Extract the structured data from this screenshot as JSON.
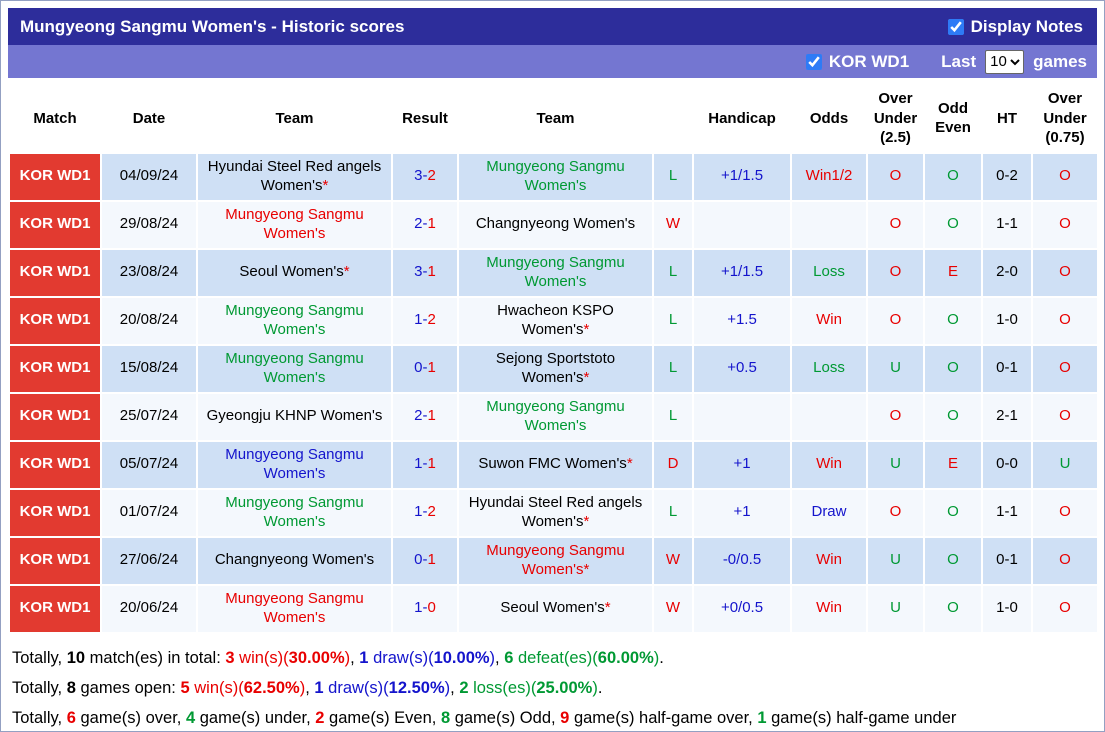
{
  "header": {
    "title": "Mungyeong Sangmu Women's - Historic scores",
    "display_notes_label": "Display Notes",
    "display_notes_checked": true
  },
  "filter_bar": {
    "league_label": "KOR WD1",
    "league_checked": true,
    "last_label": "Last",
    "games_count": "10",
    "games_options": [
      "10"
    ],
    "games_label": "games"
  },
  "colors": {
    "accent_red": "#e23a30",
    "win_red": "#e80000",
    "loss_green": "#009933",
    "draw_blue": "#1414cc",
    "title_bar": "#2d2d9b",
    "filter_bar": "#7476d1"
  },
  "table": {
    "columns": [
      "Match",
      "Date",
      "Team",
      "Result",
      "Team",
      "",
      "Handicap",
      "Odds",
      "Over Under (2.5)",
      "Odd Even",
      "HT",
      "Over Under (0.75)"
    ],
    "rows": [
      {
        "match": "KOR WD1",
        "date": "04/09/24",
        "team1": {
          "name": "Hyundai Steel Red angels Women's",
          "star": "*",
          "color": "black"
        },
        "result": [
          {
            "text": "3-",
            "color": "blue"
          },
          {
            "text": "2",
            "color": "red"
          }
        ],
        "team2": {
          "name": "Mungyeong Sangmu Women's",
          "star": "",
          "color": "green"
        },
        "outcome": {
          "text": "L",
          "color": "green"
        },
        "handicap": "+1/1.5",
        "odds": {
          "text": "Win1/2",
          "color": "red"
        },
        "over_under_25": {
          "text": "O",
          "color": "red"
        },
        "odd_even": {
          "text": "O",
          "color": "green"
        },
        "ht": "0-2",
        "over_under_075": {
          "text": "O",
          "color": "red"
        }
      },
      {
        "match": "KOR WD1",
        "date": "29/08/24",
        "team1": {
          "name": "Mungyeong Sangmu Women's",
          "star": "",
          "color": "red"
        },
        "result": [
          {
            "text": "2-",
            "color": "blue"
          },
          {
            "text": "1",
            "color": "red"
          }
        ],
        "team2": {
          "name": "Changnyeong Women's",
          "star": "",
          "color": "black"
        },
        "outcome": {
          "text": "W",
          "color": "red"
        },
        "handicap": "",
        "odds": {
          "text": "",
          "color": "black"
        },
        "over_under_25": {
          "text": "O",
          "color": "red"
        },
        "odd_even": {
          "text": "O",
          "color": "green"
        },
        "ht": "1-1",
        "over_under_075": {
          "text": "O",
          "color": "red"
        }
      },
      {
        "match": "KOR WD1",
        "date": "23/08/24",
        "team1": {
          "name": "Seoul Women's",
          "star": "*",
          "color": "black"
        },
        "result": [
          {
            "text": "3-",
            "color": "blue"
          },
          {
            "text": "1",
            "color": "red"
          }
        ],
        "team2": {
          "name": "Mungyeong Sangmu Women's",
          "star": "",
          "color": "green"
        },
        "outcome": {
          "text": "L",
          "color": "green"
        },
        "handicap": "+1/1.5",
        "odds": {
          "text": "Loss",
          "color": "green"
        },
        "over_under_25": {
          "text": "O",
          "color": "red"
        },
        "odd_even": {
          "text": "E",
          "color": "red"
        },
        "ht": "2-0",
        "over_under_075": {
          "text": "O",
          "color": "red"
        }
      },
      {
        "match": "KOR WD1",
        "date": "20/08/24",
        "team1": {
          "name": "Mungyeong Sangmu Women's",
          "star": "",
          "color": "green"
        },
        "result": [
          {
            "text": "1-",
            "color": "blue"
          },
          {
            "text": "2",
            "color": "red"
          }
        ],
        "team2": {
          "name": "Hwacheon KSPO Women's",
          "star": "*",
          "color": "black"
        },
        "outcome": {
          "text": "L",
          "color": "green"
        },
        "handicap": "+1.5",
        "odds": {
          "text": "Win",
          "color": "red"
        },
        "over_under_25": {
          "text": "O",
          "color": "red"
        },
        "odd_even": {
          "text": "O",
          "color": "green"
        },
        "ht": "1-0",
        "over_under_075": {
          "text": "O",
          "color": "red"
        }
      },
      {
        "match": "KOR WD1",
        "date": "15/08/24",
        "team1": {
          "name": "Mungyeong Sangmu Women's",
          "star": "",
          "color": "green"
        },
        "result": [
          {
            "text": "0-",
            "color": "blue"
          },
          {
            "text": "1",
            "color": "red"
          }
        ],
        "team2": {
          "name": "Sejong Sportstoto Women's",
          "star": "*",
          "color": "black"
        },
        "outcome": {
          "text": "L",
          "color": "green"
        },
        "handicap": "+0.5",
        "odds": {
          "text": "Loss",
          "color": "green"
        },
        "over_under_25": {
          "text": "U",
          "color": "green"
        },
        "odd_even": {
          "text": "O",
          "color": "green"
        },
        "ht": "0-1",
        "over_under_075": {
          "text": "O",
          "color": "red"
        }
      },
      {
        "match": "KOR WD1",
        "date": "25/07/24",
        "team1": {
          "name": "Gyeongju KHNP Women's",
          "star": "",
          "color": "black"
        },
        "result": [
          {
            "text": "2-",
            "color": "blue"
          },
          {
            "text": "1",
            "color": "red"
          }
        ],
        "team2": {
          "name": "Mungyeong Sangmu Women's",
          "star": "",
          "color": "green"
        },
        "outcome": {
          "text": "L",
          "color": "green"
        },
        "handicap": "",
        "odds": {
          "text": "",
          "color": "black"
        },
        "over_under_25": {
          "text": "O",
          "color": "red"
        },
        "odd_even": {
          "text": "O",
          "color": "green"
        },
        "ht": "2-1",
        "over_under_075": {
          "text": "O",
          "color": "red"
        }
      },
      {
        "match": "KOR WD1",
        "date": "05/07/24",
        "team1": {
          "name": "Mungyeong Sangmu Women's",
          "star": "",
          "color": "blue"
        },
        "result": [
          {
            "text": "1-",
            "color": "blue"
          },
          {
            "text": "1",
            "color": "red"
          }
        ],
        "team2": {
          "name": "Suwon FMC Women's",
          "star": "*",
          "color": "black"
        },
        "outcome": {
          "text": "D",
          "color": "red"
        },
        "handicap": "+1",
        "odds": {
          "text": "Win",
          "color": "red"
        },
        "over_under_25": {
          "text": "U",
          "color": "green"
        },
        "odd_even": {
          "text": "E",
          "color": "red"
        },
        "ht": "0-0",
        "over_under_075": {
          "text": "U",
          "color": "green"
        }
      },
      {
        "match": "KOR WD1",
        "date": "01/07/24",
        "team1": {
          "name": "Mungyeong Sangmu Women's",
          "star": "",
          "color": "green"
        },
        "result": [
          {
            "text": "1-",
            "color": "blue"
          },
          {
            "text": "2",
            "color": "red"
          }
        ],
        "team2": {
          "name": "Hyundai Steel Red angels Women's",
          "star": "*",
          "color": "black"
        },
        "outcome": {
          "text": "L",
          "color": "green"
        },
        "handicap": "+1",
        "odds": {
          "text": "Draw",
          "color": "blue"
        },
        "over_under_25": {
          "text": "O",
          "color": "red"
        },
        "odd_even": {
          "text": "O",
          "color": "green"
        },
        "ht": "1-1",
        "over_under_075": {
          "text": "O",
          "color": "red"
        }
      },
      {
        "match": "KOR WD1",
        "date": "27/06/24",
        "team1": {
          "name": "Changnyeong Women's",
          "star": "",
          "color": "black"
        },
        "result": [
          {
            "text": "0-",
            "color": "blue"
          },
          {
            "text": "1",
            "color": "red"
          }
        ],
        "team2": {
          "name": "Mungyeong Sangmu Women's",
          "star": "*",
          "color": "red"
        },
        "outcome": {
          "text": "W",
          "color": "red"
        },
        "handicap": "-0/0.5",
        "odds": {
          "text": "Win",
          "color": "red"
        },
        "over_under_25": {
          "text": "U",
          "color": "green"
        },
        "odd_even": {
          "text": "O",
          "color": "green"
        },
        "ht": "0-1",
        "over_under_075": {
          "text": "O",
          "color": "red"
        }
      },
      {
        "match": "KOR WD1",
        "date": "20/06/24",
        "team1": {
          "name": "Mungyeong Sangmu Women's",
          "star": "",
          "color": "red"
        },
        "result": [
          {
            "text": "1-",
            "color": "blue"
          },
          {
            "text": "0",
            "color": "red"
          }
        ],
        "team2": {
          "name": "Seoul Women's",
          "star": "*",
          "color": "black"
        },
        "outcome": {
          "text": "W",
          "color": "red"
        },
        "handicap": "+0/0.5",
        "odds": {
          "text": "Win",
          "color": "red"
        },
        "over_under_25": {
          "text": "U",
          "color": "green"
        },
        "odd_even": {
          "text": "O",
          "color": "green"
        },
        "ht": "1-0",
        "over_under_075": {
          "text": "O",
          "color": "red"
        }
      }
    ]
  },
  "footer": {
    "lines": [
      {
        "parts": [
          {
            "text": "Totally, ",
            "color": "black"
          },
          {
            "text": "10",
            "color": "black",
            "bold": true
          },
          {
            "text": " match(es) in total: ",
            "color": "black"
          },
          {
            "text": "3",
            "color": "red",
            "bold": true
          },
          {
            "text": " win(s)(",
            "color": "red"
          },
          {
            "text": "30.00%",
            "color": "red",
            "bold": true
          },
          {
            "text": ")",
            "color": "red"
          },
          {
            "text": ", ",
            "color": "black"
          },
          {
            "text": "1",
            "color": "blue",
            "bold": true
          },
          {
            "text": " draw(s)(",
            "color": "blue"
          },
          {
            "text": "10.00%",
            "color": "blue",
            "bold": true
          },
          {
            "text": ")",
            "color": "blue"
          },
          {
            "text": ", ",
            "color": "black"
          },
          {
            "text": "6",
            "color": "green",
            "bold": true
          },
          {
            "text": " defeat(es)(",
            "color": "green"
          },
          {
            "text": "60.00%",
            "color": "green",
            "bold": true
          },
          {
            "text": ")",
            "color": "green"
          },
          {
            "text": ".",
            "color": "black"
          }
        ]
      },
      {
        "parts": [
          {
            "text": "Totally, ",
            "color": "black"
          },
          {
            "text": "8",
            "color": "black",
            "bold": true
          },
          {
            "text": " games open: ",
            "color": "black"
          },
          {
            "text": "5",
            "color": "red",
            "bold": true
          },
          {
            "text": " win(s)(",
            "color": "red"
          },
          {
            "text": "62.50%",
            "color": "red",
            "bold": true
          },
          {
            "text": ")",
            "color": "red"
          },
          {
            "text": ", ",
            "color": "black"
          },
          {
            "text": "1",
            "color": "blue",
            "bold": true
          },
          {
            "text": " draw(s)(",
            "color": "blue"
          },
          {
            "text": "12.50%",
            "color": "blue",
            "bold": true
          },
          {
            "text": ")",
            "color": "blue"
          },
          {
            "text": ", ",
            "color": "black"
          },
          {
            "text": "2",
            "color": "green",
            "bold": true
          },
          {
            "text": " loss(es)(",
            "color": "green"
          },
          {
            "text": "25.00%",
            "color": "green",
            "bold": true
          },
          {
            "text": ")",
            "color": "green"
          },
          {
            "text": ".",
            "color": "black"
          }
        ]
      },
      {
        "parts": [
          {
            "text": "Totally, ",
            "color": "black"
          },
          {
            "text": "6",
            "color": "red",
            "bold": true
          },
          {
            "text": " game(s) over, ",
            "color": "black"
          },
          {
            "text": "4",
            "color": "green",
            "bold": true
          },
          {
            "text": " game(s) under, ",
            "color": "black"
          },
          {
            "text": "2",
            "color": "red",
            "bold": true
          },
          {
            "text": " game(s) Even, ",
            "color": "black"
          },
          {
            "text": "8",
            "color": "green",
            "bold": true
          },
          {
            "text": " game(s) Odd, ",
            "color": "black"
          },
          {
            "text": "9",
            "color": "red",
            "bold": true
          },
          {
            "text": " game(s) half-game over, ",
            "color": "black"
          },
          {
            "text": "1",
            "color": "green",
            "bold": true
          },
          {
            "text": " game(s) half-game under",
            "color": "black"
          }
        ]
      }
    ]
  }
}
